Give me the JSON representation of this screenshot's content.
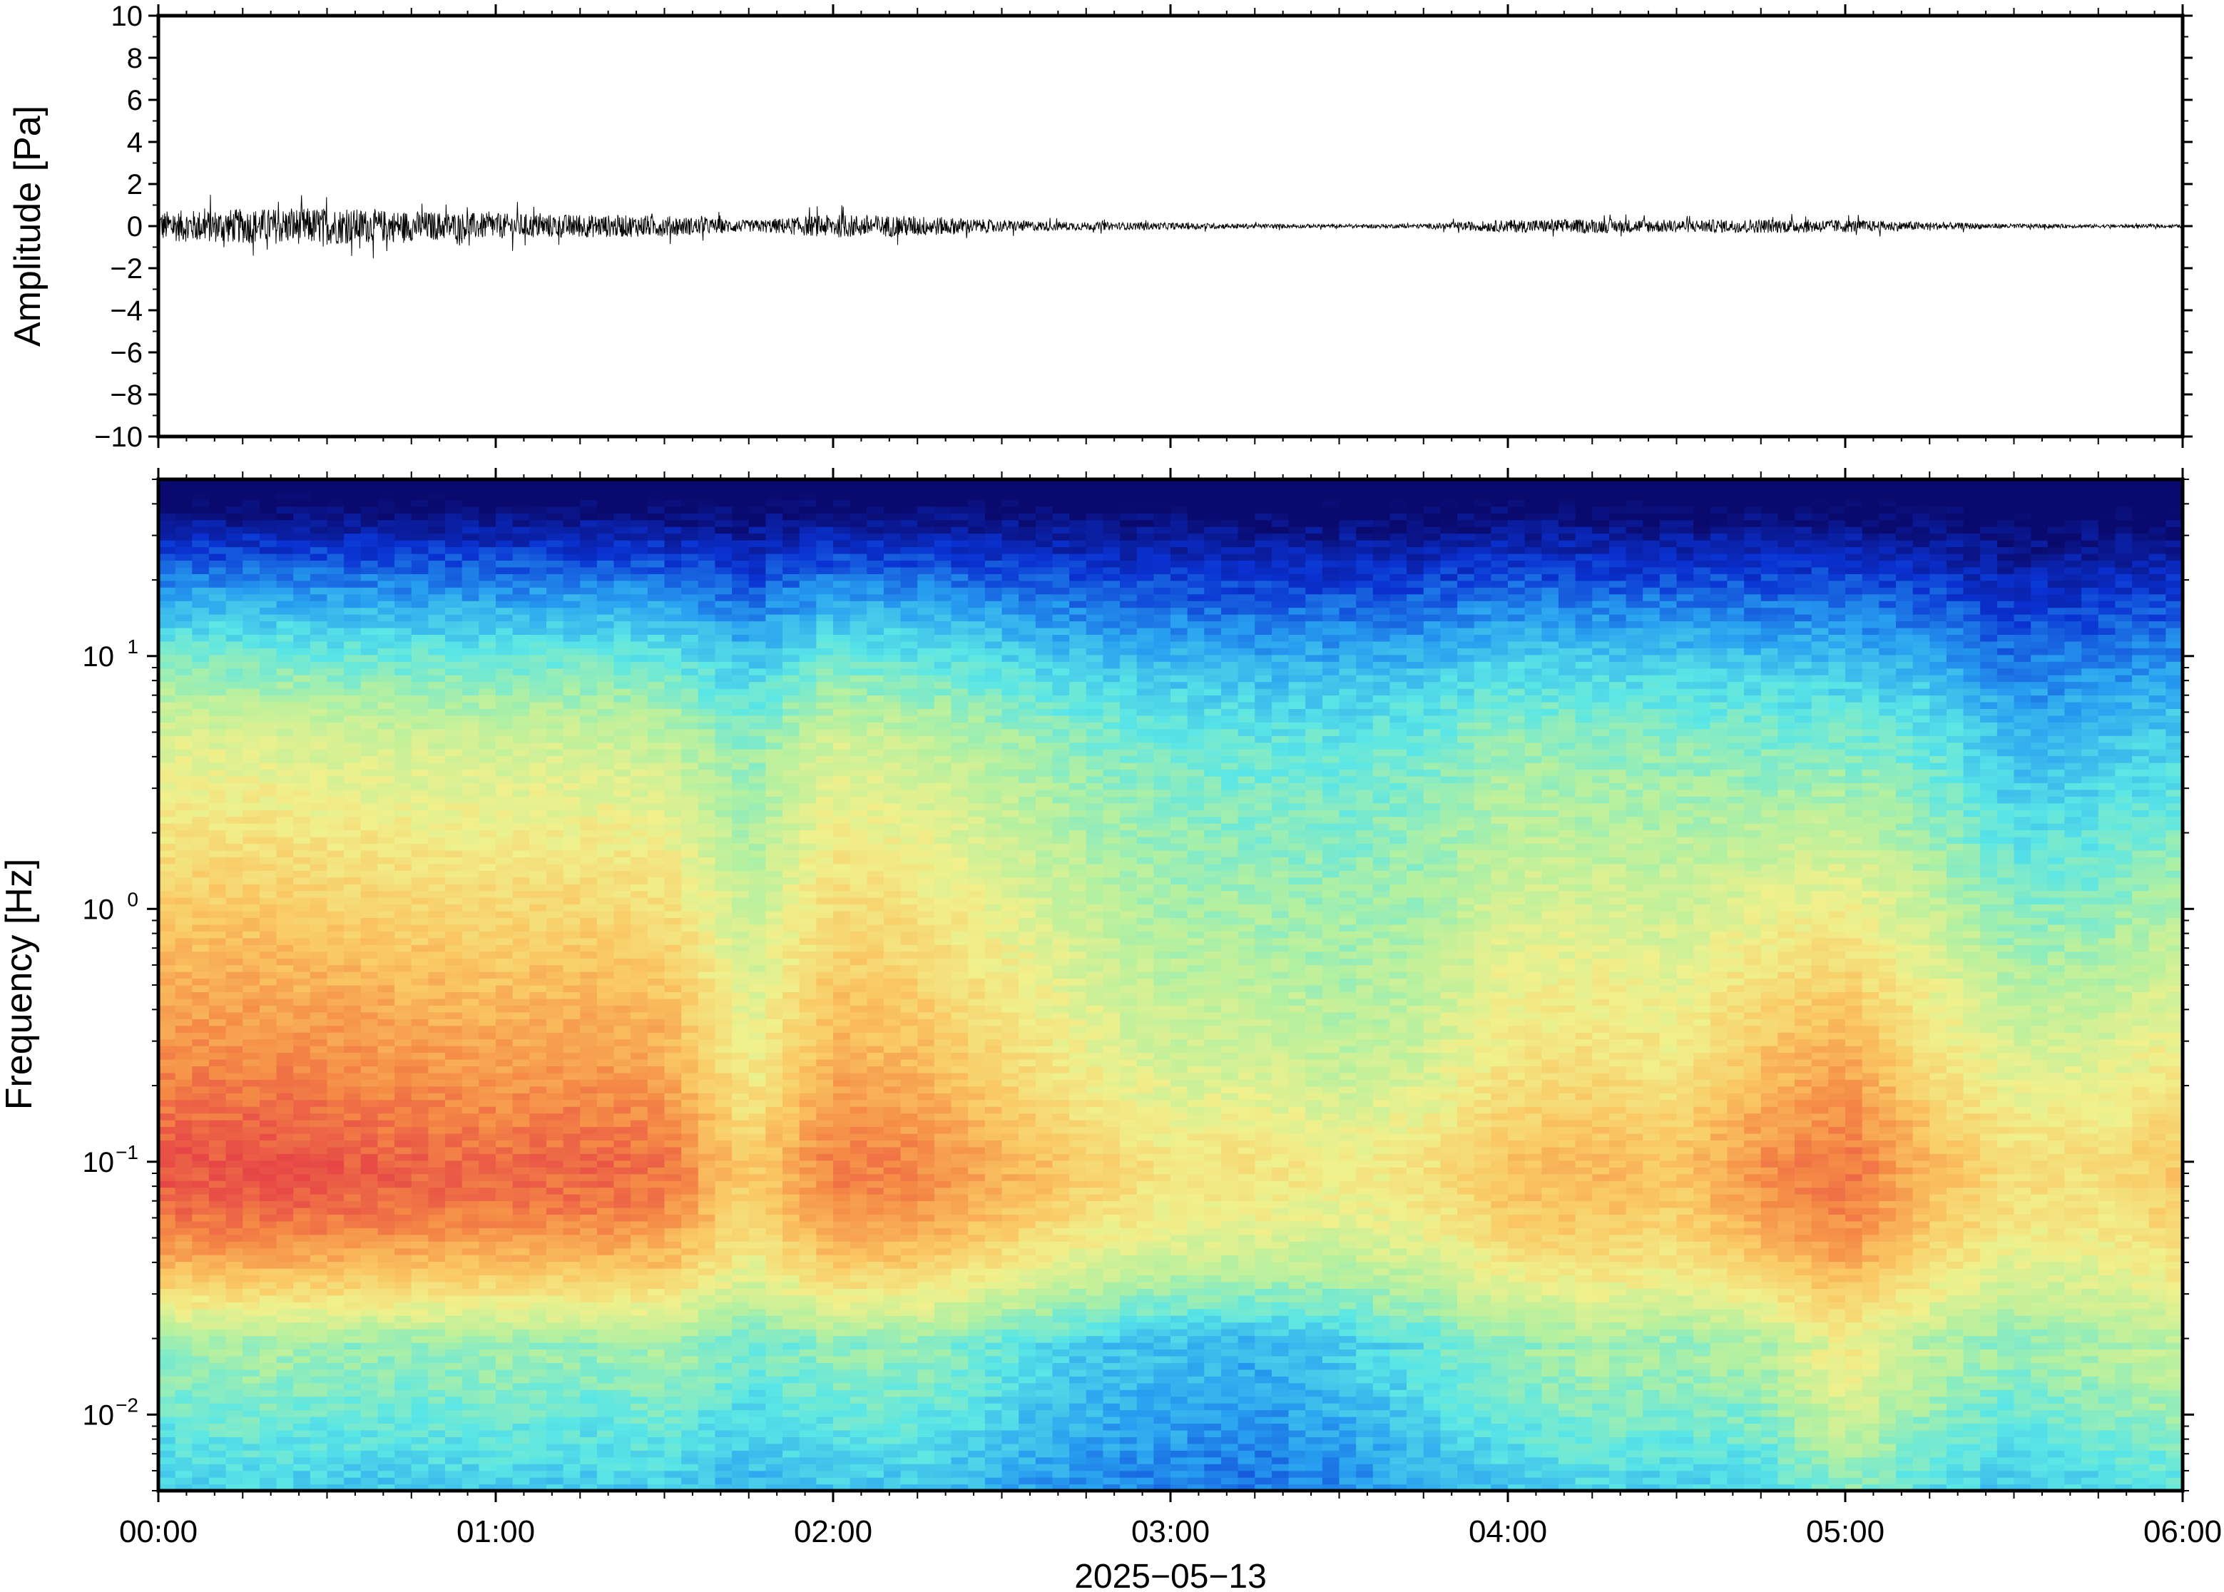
{
  "chart_data": [
    {
      "type": "line",
      "ylabel": "Amplitude [Pa]",
      "ylim": [
        -10,
        10
      ],
      "yticks": [
        10,
        8,
        6,
        4,
        2,
        0,
        -2,
        -4,
        -6,
        -8,
        -10
      ],
      "ytick_labels": [
        "10",
        "8",
        "6",
        "4",
        "2",
        "0",
        "−2",
        "−4",
        "−6",
        "−8",
        "−10"
      ],
      "x_range": [
        "00:00",
        "06:00"
      ],
      "series": [
        {
          "description_values": "peak-to-peak amplitude envelope sampled every 0.25 h (Pa)",
          "x_hours": [
            0,
            0.25,
            0.5,
            0.75,
            1.0,
            1.25,
            1.5,
            1.75,
            2.0,
            2.25,
            2.5,
            2.75,
            3.0,
            3.25,
            3.5,
            3.75,
            4.0,
            4.25,
            4.5,
            4.75,
            5.0,
            5.25,
            5.5,
            5.75,
            6.0
          ],
          "amplitude": [
            1.3,
            1.5,
            1.6,
            1.3,
            1.1,
            1.0,
            0.9,
            0.5,
            1.0,
            0.9,
            0.5,
            0.35,
            0.3,
            0.2,
            0.15,
            0.2,
            0.55,
            0.6,
            0.55,
            0.6,
            0.55,
            0.35,
            0.2,
            0.15,
            0.15
          ]
        }
      ],
      "line_color": "#000000"
    },
    {
      "type": "heatmap",
      "ylabel": "Frequency [Hz]",
      "yscale": "log",
      "ylim": [
        0.005,
        50
      ],
      "yticks": [
        0.01,
        0.1,
        1,
        10
      ],
      "ytick_labels": [
        {
          "base": "10",
          "exp": "−2"
        },
        {
          "base": "10",
          "exp": "−1"
        },
        {
          "base": "10",
          "exp": "0"
        },
        {
          "base": "10",
          "exp": "1"
        }
      ],
      "xlabel": "2025−05−13",
      "xticks": [
        "00:00",
        "01:00",
        "02:00",
        "03:00",
        "04:00",
        "05:00",
        "06:00"
      ],
      "x_hours": [
        0,
        0.25,
        0.5,
        0.75,
        1.0,
        1.25,
        1.5,
        1.75,
        2.0,
        2.25,
        2.5,
        2.75,
        3.0,
        3.25,
        3.5,
        3.75,
        4.0,
        4.25,
        4.5,
        4.75,
        5.0,
        5.25,
        5.5,
        5.75,
        6.0
      ],
      "colormap": "jet",
      "colormap_stops": [
        "#0a0a6e",
        "#0a32d2",
        "#28a0f0",
        "#5ae6e6",
        "#b4f0a0",
        "#f0f08c",
        "#fac864",
        "#f58c46",
        "#e64646"
      ],
      "level_descriptions": "relative power 0 (dark blue) to 1 (red); per-time-column profile parameters",
      "peak_level": [
        0.97,
        0.98,
        0.97,
        0.95,
        0.93,
        0.94,
        0.92,
        0.72,
        0.9,
        0.88,
        0.8,
        0.72,
        0.66,
        0.66,
        0.63,
        0.66,
        0.76,
        0.78,
        0.75,
        0.86,
        0.92,
        0.78,
        0.68,
        0.68,
        0.75
      ],
      "high_freq_level": [
        0.6,
        0.6,
        0.58,
        0.57,
        0.57,
        0.57,
        0.55,
        0.45,
        0.58,
        0.55,
        0.5,
        0.45,
        0.42,
        0.4,
        0.4,
        0.42,
        0.48,
        0.46,
        0.46,
        0.44,
        0.44,
        0.4,
        0.3,
        0.32,
        0.35
      ],
      "low_freq_level": [
        0.42,
        0.45,
        0.43,
        0.42,
        0.44,
        0.42,
        0.44,
        0.38,
        0.42,
        0.42,
        0.36,
        0.3,
        0.28,
        0.26,
        0.3,
        0.36,
        0.42,
        0.46,
        0.44,
        0.46,
        0.6,
        0.48,
        0.42,
        0.46,
        0.5
      ]
    }
  ]
}
